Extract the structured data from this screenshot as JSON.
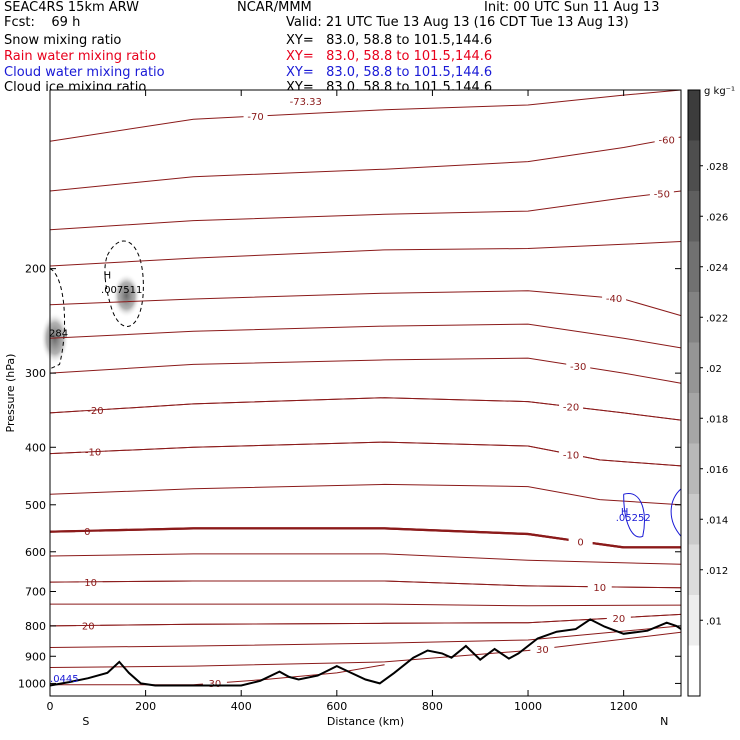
{
  "header": {
    "model": "SEAC4RS 15km ARW",
    "org": "NCAR/MMM",
    "init": "Init: 00 UTC Sun 11 Aug 13",
    "fcst": "Fcst:    69 h",
    "valid": "Valid: 21 UTC Tue 13 Aug 13 (16 CDT Tue 13 Aug 13)"
  },
  "fields": [
    {
      "name": "Snow mixing ratio",
      "xy": "XY=   83.0, 58.8 to 101.5,144.6",
      "color": "#000000"
    },
    {
      "name": "Rain water mixing ratio",
      "xy": "XY=   83.0, 58.8 to 101.5,144.6",
      "color": "#e8001c"
    },
    {
      "name": "Cloud water mixing ratio",
      "xy": "XY=   83.0, 58.8 to 101.5,144.6",
      "color": "#1a1ad6"
    },
    {
      "name": "Cloud ice mixing ratio",
      "xy": "XY=   83.0, 58.8 to 101.5,144.6",
      "color": "#000000"
    }
  ],
  "colors": {
    "temperature": "#8b1a1a",
    "terrain": "#000000",
    "cloud_water": "#1a1ad6"
  },
  "colorbar": {
    "unit": "g kg⁻¹",
    "labels": [
      ".028",
      ".026",
      ".024",
      ".022",
      ".02",
      ".018",
      ".016",
      ".014",
      ".012",
      ".01"
    ]
  },
  "annotations": {
    "high1": "H",
    "high1_val": ".007511",
    "high2": "H",
    "high2_val": ".05252",
    "edge1": "284",
    "edge2": ".0445",
    "top_val": "-73.33",
    "south": "S",
    "north": "N"
  },
  "chart_data": {
    "type": "contour",
    "xlabel": "Distance (km)",
    "ylabel": "Pressure (hPa)",
    "xlim": [
      0,
      1320
    ],
    "ylim": [
      1050,
      100
    ],
    "x_ticks": [
      0,
      200,
      400,
      600,
      800,
      1000,
      1200
    ],
    "y_ticks": [
      200,
      300,
      400,
      500,
      600,
      700,
      800,
      900,
      1000
    ],
    "y_scale": "log",
    "temperature_contours": [
      {
        "label": "-70",
        "lx": 430,
        "pts": [
          [
            0,
            122
          ],
          [
            300,
            112
          ],
          [
            700,
            108
          ],
          [
            1000,
            106
          ],
          [
            1200,
            102
          ],
          [
            1320,
            100
          ]
        ]
      },
      {
        "label": "-60",
        "lx": 1290,
        "pts": [
          [
            0,
            148
          ],
          [
            300,
            140
          ],
          [
            700,
            136
          ],
          [
            1000,
            132
          ],
          [
            1200,
            125
          ],
          [
            1320,
            120
          ]
        ]
      },
      {
        "label": "-50",
        "lx": 1280,
        "pts": [
          [
            0,
            172
          ],
          [
            300,
            166
          ],
          [
            700,
            162
          ],
          [
            1000,
            160
          ],
          [
            1200,
            152
          ],
          [
            1320,
            148
          ]
        ]
      },
      {
        "label": "",
        "lx": 0,
        "pts": [
          [
            0,
            198
          ],
          [
            300,
            192
          ],
          [
            700,
            186
          ],
          [
            1000,
            185
          ],
          [
            1200,
            182
          ],
          [
            1320,
            180
          ]
        ]
      },
      {
        "label": "-40",
        "lx": 1180,
        "pts": [
          [
            0,
            230
          ],
          [
            300,
            225
          ],
          [
            700,
            220
          ],
          [
            1000,
            218
          ],
          [
            1200,
            225
          ],
          [
            1320,
            240
          ]
        ]
      },
      {
        "label": "",
        "lx": 0,
        "pts": [
          [
            0,
            262
          ],
          [
            300,
            255
          ],
          [
            700,
            250
          ],
          [
            1000,
            248
          ],
          [
            1200,
            262
          ],
          [
            1320,
            272
          ]
        ]
      },
      {
        "label": "-30",
        "lx": 1105,
        "pts": [
          [
            0,
            300
          ],
          [
            300,
            290
          ],
          [
            700,
            285
          ],
          [
            1000,
            283
          ],
          [
            1200,
            300
          ],
          [
            1320,
            312
          ]
        ]
      },
      {
        "label": "-20",
        "lx": 95,
        "pts": [
          [
            0,
            350
          ],
          [
            300,
            338
          ],
          [
            700,
            330
          ],
          [
            1000,
            335
          ],
          [
            1200,
            350
          ],
          [
            1320,
            360
          ]
        ]
      },
      {
        "label": "-20",
        "lx": 1090,
        "pts": [
          [
            0,
            350
          ],
          [
            300,
            338
          ],
          [
            700,
            330
          ],
          [
            1000,
            335
          ],
          [
            1200,
            350
          ],
          [
            1320,
            360
          ]
        ]
      },
      {
        "label": "-10",
        "lx": 90,
        "pts": [
          [
            0,
            410
          ],
          [
            300,
            400
          ],
          [
            700,
            392
          ],
          [
            1000,
            398
          ],
          [
            1150,
            420
          ],
          [
            1320,
            430
          ]
        ]
      },
      {
        "label": "-10",
        "lx": 1090,
        "pts": [
          [
            0,
            410
          ],
          [
            300,
            400
          ],
          [
            700,
            392
          ],
          [
            1000,
            398
          ],
          [
            1150,
            420
          ],
          [
            1320,
            430
          ]
        ]
      },
      {
        "label": "",
        "lx": 0,
        "pts": [
          [
            0,
            480
          ],
          [
            300,
            470
          ],
          [
            700,
            462
          ],
          [
            1000,
            466
          ],
          [
            1150,
            490
          ],
          [
            1320,
            500
          ]
        ]
      },
      {
        "label": "0",
        "lx": 78,
        "pts": [
          [
            0,
            555
          ],
          [
            300,
            548
          ],
          [
            700,
            548
          ],
          [
            1000,
            560
          ],
          [
            1100,
            575
          ],
          [
            1200,
            590
          ],
          [
            1320,
            590
          ]
        ]
      },
      {
        "label": "0",
        "lx": 1110,
        "pts": [
          [
            0,
            555
          ],
          [
            300,
            548
          ],
          [
            700,
            548
          ],
          [
            1000,
            560
          ],
          [
            1100,
            575
          ],
          [
            1200,
            590
          ],
          [
            1320,
            590
          ]
        ]
      },
      {
        "label": "",
        "lx": 0,
        "pts": [
          [
            0,
            610
          ],
          [
            300,
            605
          ],
          [
            700,
            605
          ],
          [
            1000,
            620
          ],
          [
            1320,
            630
          ]
        ]
      },
      {
        "label": "10",
        "lx": 85,
        "pts": [
          [
            0,
            675
          ],
          [
            300,
            672
          ],
          [
            700,
            672
          ],
          [
            1000,
            685
          ],
          [
            1320,
            690
          ]
        ]
      },
      {
        "label": "10",
        "lx": 1150,
        "pts": [
          [
            0,
            675
          ],
          [
            300,
            672
          ],
          [
            700,
            672
          ],
          [
            1000,
            685
          ],
          [
            1320,
            690
          ]
        ]
      },
      {
        "label": "",
        "lx": 0,
        "pts": [
          [
            0,
            735
          ],
          [
            300,
            735
          ],
          [
            700,
            735
          ],
          [
            1000,
            740
          ],
          [
            1320,
            738
          ]
        ]
      },
      {
        "label": "20",
        "lx": 80,
        "pts": [
          [
            0,
            800
          ],
          [
            300,
            795
          ],
          [
            700,
            792
          ],
          [
            1000,
            790
          ],
          [
            1320,
            765
          ]
        ]
      },
      {
        "label": "20",
        "lx": 1190,
        "pts": [
          [
            0,
            800
          ],
          [
            300,
            795
          ],
          [
            700,
            792
          ],
          [
            1000,
            790
          ],
          [
            1320,
            765
          ]
        ]
      },
      {
        "label": "",
        "lx": 0,
        "pts": [
          [
            0,
            870
          ],
          [
            300,
            865
          ],
          [
            700,
            855
          ],
          [
            1000,
            845
          ],
          [
            1320,
            800
          ]
        ]
      },
      {
        "label": "30",
        "lx": 1030,
        "pts": [
          [
            0,
            940
          ],
          [
            300,
            935
          ],
          [
            700,
            920
          ],
          [
            1000,
            880
          ],
          [
            1320,
            820
          ]
        ]
      },
      {
        "label": "30",
        "lx": 345,
        "pts": [
          [
            0,
            1005
          ],
          [
            300,
            1005
          ],
          [
            450,
            985
          ],
          [
            600,
            960
          ],
          [
            700,
            930
          ]
        ]
      }
    ],
    "terrain": [
      [
        0,
        1008
      ],
      [
        40,
        995
      ],
      [
        80,
        980
      ],
      [
        120,
        960
      ],
      [
        145,
        920
      ],
      [
        165,
        960
      ],
      [
        190,
        1000
      ],
      [
        220,
        1008
      ],
      [
        400,
        1008
      ],
      [
        440,
        990
      ],
      [
        480,
        955
      ],
      [
        500,
        975
      ],
      [
        520,
        985
      ],
      [
        560,
        970
      ],
      [
        600,
        935
      ],
      [
        630,
        960
      ],
      [
        660,
        985
      ],
      [
        690,
        1000
      ],
      [
        720,
        960
      ],
      [
        760,
        905
      ],
      [
        790,
        880
      ],
      [
        820,
        890
      ],
      [
        840,
        905
      ],
      [
        870,
        865
      ],
      [
        900,
        912
      ],
      [
        930,
        875
      ],
      [
        960,
        908
      ],
      [
        980,
        890
      ],
      [
        1020,
        840
      ],
      [
        1060,
        818
      ],
      [
        1100,
        810
      ],
      [
        1130,
        780
      ],
      [
        1160,
        802
      ],
      [
        1200,
        825
      ],
      [
        1250,
        815
      ],
      [
        1290,
        790
      ],
      [
        1310,
        800
      ],
      [
        1320,
        810
      ]
    ]
  }
}
